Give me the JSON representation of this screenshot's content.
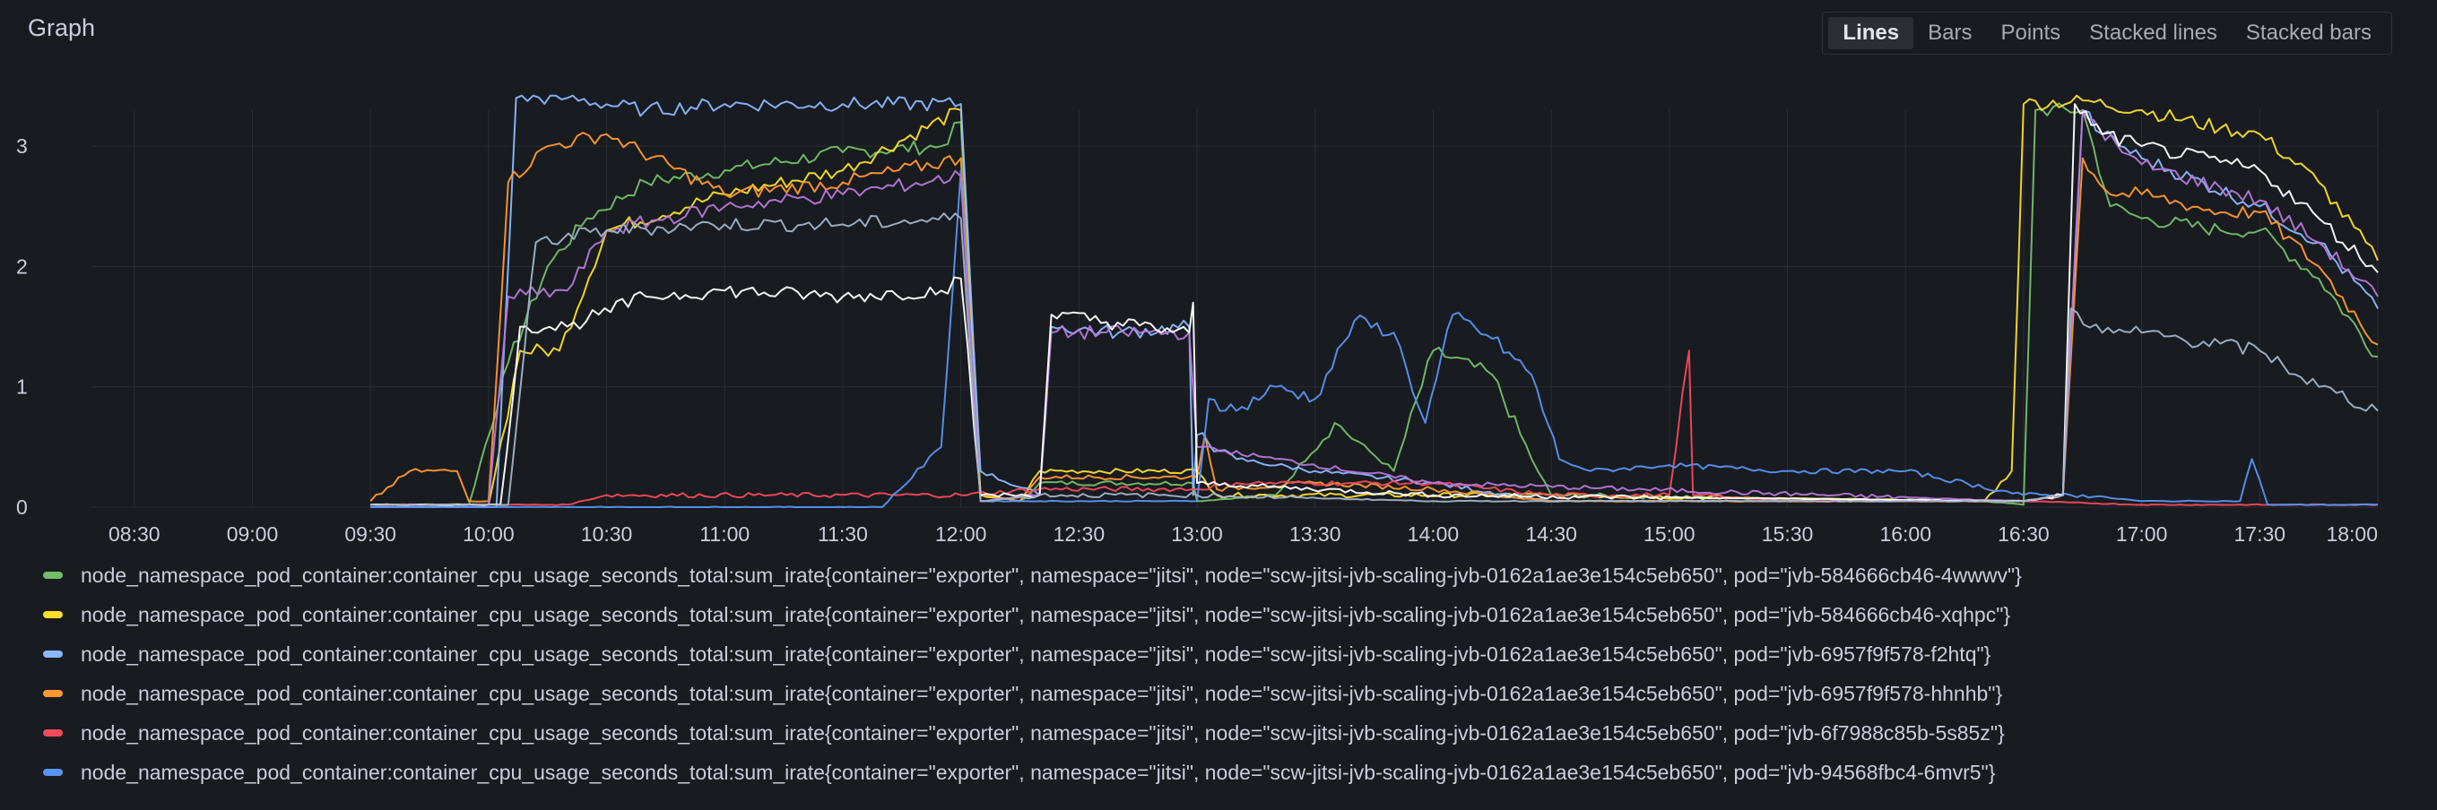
{
  "panel": {
    "title": "Graph",
    "modes": [
      {
        "label": "Lines",
        "active": true
      },
      {
        "label": "Bars",
        "active": false
      },
      {
        "label": "Points",
        "active": false
      },
      {
        "label": "Stacked lines",
        "active": false
      },
      {
        "label": "Stacked bars",
        "active": false
      }
    ]
  },
  "legend": [
    {
      "color": "#73bf69",
      "label": "node_namespace_pod_container:container_cpu_usage_seconds_total:sum_irate{container=\"exporter\", namespace=\"jitsi\", node=\"scw-jitsi-jvb-scaling-jvb-0162a1ae3e154c5eb650\", pod=\"jvb-584666cb46-4wwwv\"}"
    },
    {
      "color": "#fade2a",
      "label": "node_namespace_pod_container:container_cpu_usage_seconds_total:sum_irate{container=\"exporter\", namespace=\"jitsi\", node=\"scw-jitsi-jvb-scaling-jvb-0162a1ae3e154c5eb650\", pod=\"jvb-584666cb46-xqhpc\"}"
    },
    {
      "color": "#8ab8ff",
      "label": "node_namespace_pod_container:container_cpu_usage_seconds_total:sum_irate{container=\"exporter\", namespace=\"jitsi\", node=\"scw-jitsi-jvb-scaling-jvb-0162a1ae3e154c5eb650\", pod=\"jvb-6957f9f578-f2htq\"}"
    },
    {
      "color": "#ff9830",
      "label": "node_namespace_pod_container:container_cpu_usage_seconds_total:sum_irate{container=\"exporter\", namespace=\"jitsi\", node=\"scw-jitsi-jvb-scaling-jvb-0162a1ae3e154c5eb650\", pod=\"jvb-6957f9f578-hhnhb\"}"
    },
    {
      "color": "#f2495c",
      "label": "node_namespace_pod_container:container_cpu_usage_seconds_total:sum_irate{container=\"exporter\", namespace=\"jitsi\", node=\"scw-jitsi-jvb-scaling-jvb-0162a1ae3e154c5eb650\", pod=\"jvb-6f7988c85b-5s85z\"}"
    },
    {
      "color": "#5794f2",
      "label": "node_namespace_pod_container:container_cpu_usage_seconds_total:sum_irate{container=\"exporter\", namespace=\"jitsi\", node=\"scw-jitsi-jvb-scaling-jvb-0162a1ae3e154c5eb650\", pod=\"jvb-94568fbc4-6mvr5\"}"
    }
  ],
  "chart_data": {
    "type": "line",
    "title": "Graph",
    "xlabel": "",
    "ylabel": "",
    "x_ticks": [
      "08:30",
      "09:00",
      "09:30",
      "10:00",
      "10:30",
      "11:00",
      "11:30",
      "12:00",
      "12:30",
      "13:00",
      "13:30",
      "14:00",
      "14:30",
      "15:00",
      "15:30",
      "16:00",
      "16:30",
      "17:00",
      "17:30",
      "18:00"
    ],
    "y_ticks": [
      "0",
      "1",
      "2",
      "3"
    ],
    "ylim": [
      0,
      3.5
    ],
    "xlim": [
      "08:10",
      "18:00"
    ],
    "grid": true,
    "legend_position": "bottom",
    "series": [
      {
        "name": "jvb-584666cb46-4wwwv",
        "color": "#73bf69",
        "points": [
          [
            "09:30",
            0.02
          ],
          [
            "09:55",
            0.02
          ],
          [
            "10:05",
            1.2
          ],
          [
            "10:15",
            2.0
          ],
          [
            "10:25",
            2.4
          ],
          [
            "10:40",
            2.7
          ],
          [
            "11:00",
            2.8
          ],
          [
            "11:30",
            2.95
          ],
          [
            "11:55",
            3.0
          ],
          [
            "12:00",
            3.2
          ],
          [
            "12:05",
            0.1
          ],
          [
            "12:15",
            0.05
          ],
          [
            "12:20",
            0.2
          ],
          [
            "12:59",
            0.2
          ],
          [
            "13:00",
            0.05
          ],
          [
            "13:20",
            0.1
          ],
          [
            "13:35",
            0.7
          ],
          [
            "13:50",
            0.3
          ],
          [
            "14:00",
            1.3
          ],
          [
            "14:15",
            1.1
          ],
          [
            "14:25",
            0.4
          ],
          [
            "14:30",
            0.1
          ],
          [
            "16:20",
            0.05
          ],
          [
            "16:30",
            0.02
          ],
          [
            "16:33",
            3.3
          ],
          [
            "16:45",
            3.3
          ],
          [
            "16:52",
            2.5
          ],
          [
            "17:00",
            2.4
          ],
          [
            "17:20",
            2.3
          ],
          [
            "17:30",
            2.3
          ],
          [
            "17:45",
            1.9
          ],
          [
            "18:00",
            1.25
          ]
        ]
      },
      {
        "name": "jvb-584666cb46-xqhpc",
        "color": "#fade2a",
        "points": [
          [
            "09:30",
            0.02
          ],
          [
            "10:00",
            0.02
          ],
          [
            "10:08",
            1.3
          ],
          [
            "10:18",
            1.3
          ],
          [
            "10:30",
            2.3
          ],
          [
            "11:00",
            2.6
          ],
          [
            "11:30",
            2.8
          ],
          [
            "12:00",
            3.3
          ],
          [
            "12:05",
            0.1
          ],
          [
            "12:15",
            0.05
          ],
          [
            "12:20",
            0.3
          ],
          [
            "13:00",
            0.3
          ],
          [
            "13:05",
            0.1
          ],
          [
            "14:30",
            0.1
          ],
          [
            "16:20",
            0.05
          ],
          [
            "16:27",
            0.3
          ],
          [
            "16:30",
            3.35
          ],
          [
            "16:45",
            3.38
          ],
          [
            "17:00",
            3.3
          ],
          [
            "17:20",
            3.15
          ],
          [
            "17:30",
            3.1
          ],
          [
            "17:45",
            2.7
          ],
          [
            "18:00",
            2.05
          ]
        ]
      },
      {
        "name": "jvb-6957f9f578-f2htq",
        "color": "#8ab8ff",
        "points": [
          [
            "09:30",
            0.0
          ],
          [
            "10:02",
            0.0
          ],
          [
            "10:07",
            3.4
          ],
          [
            "10:20",
            3.4
          ],
          [
            "10:40",
            3.3
          ],
          [
            "11:00",
            3.35
          ],
          [
            "11:30",
            3.35
          ],
          [
            "12:00",
            3.35
          ],
          [
            "12:05",
            0.3
          ],
          [
            "12:20",
            0.1
          ],
          [
            "12:23",
            1.5
          ],
          [
            "12:40",
            1.45
          ],
          [
            "12:58",
            1.5
          ],
          [
            "12:59",
            0.1
          ],
          [
            "13:00",
            0.6
          ],
          [
            "13:10",
            0.4
          ],
          [
            "13:30",
            0.3
          ],
          [
            "14:00",
            0.2
          ],
          [
            "14:30",
            0.05
          ],
          [
            "16:30",
            0.05
          ],
          [
            "16:40",
            0.1
          ],
          [
            "16:45",
            3.3
          ],
          [
            "16:50",
            3.1
          ],
          [
            "17:00",
            2.9
          ],
          [
            "17:30",
            2.5
          ],
          [
            "17:45",
            2.2
          ],
          [
            "18:00",
            1.65
          ]
        ]
      },
      {
        "name": "jvb-6957f9f578-hhnhb",
        "color": "#ff9830",
        "points": [
          [
            "09:30",
            0.05
          ],
          [
            "09:40",
            0.3
          ],
          [
            "09:52",
            0.3
          ],
          [
            "09:55",
            0.05
          ],
          [
            "10:00",
            0.05
          ],
          [
            "10:05",
            2.7
          ],
          [
            "10:15",
            3.0
          ],
          [
            "10:30",
            3.1
          ],
          [
            "11:00",
            2.6
          ],
          [
            "11:30",
            2.7
          ],
          [
            "12:00",
            2.9
          ],
          [
            "12:05",
            0.1
          ],
          [
            "12:15",
            0.05
          ],
          [
            "12:20",
            0.25
          ],
          [
            "13:00",
            0.25
          ],
          [
            "13:02",
            0.6
          ],
          [
            "13:05",
            0.15
          ],
          [
            "13:30",
            0.2
          ],
          [
            "14:00",
            0.15
          ],
          [
            "14:30",
            0.05
          ],
          [
            "16:30",
            0.05
          ],
          [
            "16:40",
            0.1
          ],
          [
            "16:45",
            2.9
          ],
          [
            "16:52",
            2.6
          ],
          [
            "17:00",
            2.6
          ],
          [
            "17:20",
            2.45
          ],
          [
            "17:30",
            2.45
          ],
          [
            "17:45",
            2.0
          ],
          [
            "18:00",
            1.35
          ]
        ]
      },
      {
        "name": "jvb-6f7988c85b-5s85z",
        "color": "#f2495c",
        "points": [
          [
            "09:30",
            0.02
          ],
          [
            "10:20",
            0.02
          ],
          [
            "10:30",
            0.1
          ],
          [
            "12:00",
            0.1
          ],
          [
            "12:20",
            0.15
          ],
          [
            "13:00",
            0.15
          ],
          [
            "13:10",
            0.2
          ],
          [
            "13:40",
            0.2
          ],
          [
            "14:00",
            0.2
          ],
          [
            "14:30",
            0.1
          ],
          [
            "15:00",
            0.1
          ],
          [
            "15:05",
            1.3
          ],
          [
            "15:06",
            0.1
          ],
          [
            "15:30",
            0.05
          ],
          [
            "16:30",
            0.05
          ],
          [
            "17:00",
            0.02
          ],
          [
            "18:00",
            0.02
          ]
        ]
      },
      {
        "name": "jvb-94568fbc4-6mvr5",
        "color": "#5794f2",
        "points": [
          [
            "09:30",
            0.0
          ],
          [
            "10:20",
            0.0
          ],
          [
            "11:40",
            0.0
          ],
          [
            "11:55",
            0.5
          ],
          [
            "12:00",
            2.8
          ],
          [
            "12:05",
            0.05
          ],
          [
            "12:20",
            0.05
          ],
          [
            "13:00",
            0.05
          ],
          [
            "13:03",
            0.9
          ],
          [
            "13:10",
            0.8
          ],
          [
            "13:20",
            1.0
          ],
          [
            "13:30",
            0.9
          ],
          [
            "13:40",
            1.55
          ],
          [
            "13:50",
            1.45
          ],
          [
            "13:58",
            0.7
          ],
          [
            "14:05",
            1.6
          ],
          [
            "14:15",
            1.4
          ],
          [
            "14:25",
            1.1
          ],
          [
            "14:32",
            0.4
          ],
          [
            "14:40",
            0.3
          ],
          [
            "15:00",
            0.35
          ],
          [
            "15:30",
            0.3
          ],
          [
            "16:00",
            0.3
          ],
          [
            "16:30",
            0.1
          ],
          [
            "16:45",
            0.1
          ],
          [
            "17:00",
            0.05
          ],
          [
            "17:15",
            0.05
          ],
          [
            "17:25",
            0.05
          ],
          [
            "17:28",
            0.4
          ],
          [
            "17:32",
            0.02
          ],
          [
            "18:00",
            0.02
          ]
        ]
      },
      {
        "color": "#b877d9",
        "points": [
          [
            "09:30",
            0.02
          ],
          [
            "10:00",
            0.02
          ],
          [
            "10:05",
            1.75
          ],
          [
            "10:20",
            1.8
          ],
          [
            "10:30",
            2.3
          ],
          [
            "11:00",
            2.5
          ],
          [
            "11:30",
            2.6
          ],
          [
            "12:00",
            2.75
          ],
          [
            "12:05",
            0.05
          ],
          [
            "12:20",
            0.1
          ],
          [
            "12:23",
            1.45
          ],
          [
            "12:58",
            1.45
          ],
          [
            "13:00",
            0.5
          ],
          [
            "13:20",
            0.4
          ],
          [
            "14:00",
            0.2
          ],
          [
            "16:30",
            0.05
          ],
          [
            "16:40",
            0.1
          ],
          [
            "16:45",
            3.3
          ],
          [
            "16:55",
            2.95
          ],
          [
            "17:00",
            2.85
          ],
          [
            "17:30",
            2.55
          ],
          [
            "17:45",
            2.2
          ],
          [
            "18:00",
            1.75
          ]
        ]
      },
      {
        "color": "#ffffff",
        "points": [
          [
            "09:30",
            0.02
          ],
          [
            "10:03",
            0.02
          ],
          [
            "10:08",
            1.5
          ],
          [
            "10:20",
            1.5
          ],
          [
            "10:28",
            1.6
          ],
          [
            "10:40",
            1.75
          ],
          [
            "11:00",
            1.8
          ],
          [
            "11:30",
            1.75
          ],
          [
            "11:55",
            1.8
          ],
          [
            "12:00",
            1.9
          ],
          [
            "12:05",
            0.1
          ],
          [
            "12:20",
            0.1
          ],
          [
            "12:23",
            1.6
          ],
          [
            "12:58",
            1.45
          ],
          [
            "12:59",
            1.7
          ],
          [
            "13:00",
            0.2
          ],
          [
            "14:00",
            0.1
          ],
          [
            "16:30",
            0.05
          ],
          [
            "16:40",
            0.1
          ],
          [
            "16:43",
            3.35
          ],
          [
            "16:50",
            3.1
          ],
          [
            "17:00",
            3.0
          ],
          [
            "17:30",
            2.8
          ],
          [
            "17:45",
            2.4
          ],
          [
            "18:00",
            1.95
          ]
        ]
      },
      {
        "color": "#9fb3c8",
        "points": [
          [
            "09:30",
            0.02
          ],
          [
            "10:05",
            0.02
          ],
          [
            "10:12",
            2.2
          ],
          [
            "10:30",
            2.3
          ],
          [
            "11:00",
            2.35
          ],
          [
            "11:30",
            2.35
          ],
          [
            "12:00",
            2.4
          ],
          [
            "12:05",
            0.05
          ],
          [
            "12:20",
            0.1
          ],
          [
            "13:00",
            0.1
          ],
          [
            "14:00",
            0.05
          ],
          [
            "16:30",
            0.05
          ],
          [
            "16:40",
            0.1
          ],
          [
            "16:42",
            1.65
          ],
          [
            "16:50",
            1.45
          ],
          [
            "17:00",
            1.45
          ],
          [
            "17:30",
            1.3
          ],
          [
            "17:45",
            1.0
          ],
          [
            "18:00",
            0.8
          ]
        ]
      }
    ]
  }
}
